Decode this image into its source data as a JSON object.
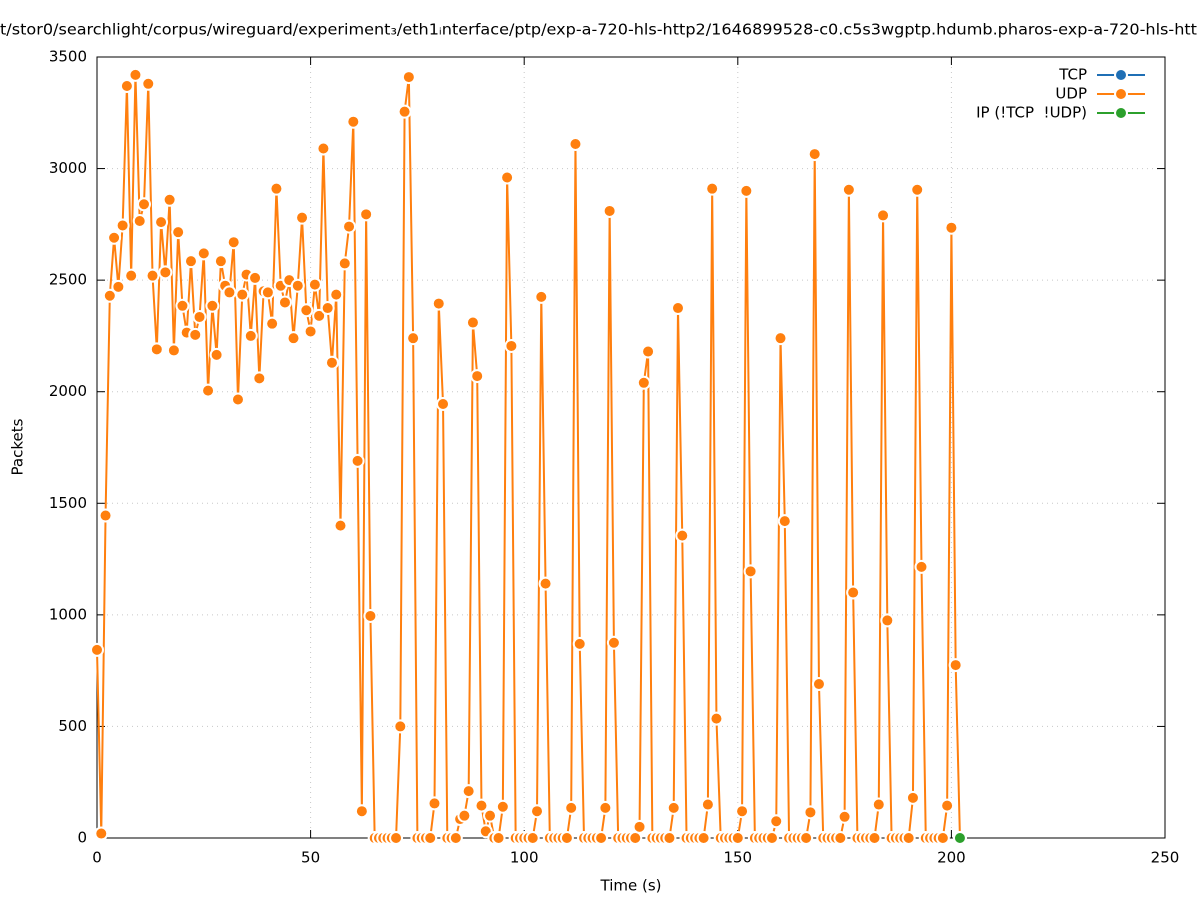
{
  "chart_data": {
    "type": "line",
    "title": "t/stor0/searchlight/corpus/wireguard/experiment₃/eth1ᵢnterface/ptp/exp-a-720-hls-http2/1646899528-c0.c5s3wgptp.hdumb.pharos-exp-a-720-hls-htt",
    "x_label": "Time (s)",
    "y_label": "Packets",
    "xlim": [
      0,
      250
    ],
    "xticks": [
      0,
      50,
      100,
      150,
      200,
      250
    ],
    "ylim": [
      0,
      3500
    ],
    "yticks": [
      0,
      500,
      1000,
      1500,
      2000,
      2500,
      3000,
      3500
    ],
    "grid": true,
    "legend": "top-right",
    "series": [
      {
        "name": "TCP",
        "color": "#1f6fb5",
        "x": [],
        "values": []
      },
      {
        "name": "UDP",
        "color": "#ff7f0e",
        "x": [
          0,
          1,
          2,
          3,
          4,
          5,
          6,
          7,
          8,
          9,
          10,
          11,
          12,
          13,
          14,
          15,
          16,
          17,
          18,
          19,
          20,
          21,
          22,
          23,
          24,
          25,
          26,
          27,
          28,
          29,
          30,
          31,
          32,
          33,
          34,
          35,
          36,
          37,
          38,
          39,
          40,
          41,
          42,
          43,
          44,
          45,
          46,
          47,
          48,
          49,
          50,
          51,
          52,
          53,
          54,
          55,
          56,
          57,
          58,
          59,
          60,
          61,
          62,
          63,
          64,
          65,
          66,
          67,
          68,
          69,
          70,
          71,
          72,
          73,
          74,
          75,
          76,
          77,
          78,
          79,
          80,
          81,
          82,
          83,
          84,
          85,
          86,
          87,
          88,
          89,
          90,
          91,
          92,
          93,
          94,
          95,
          96,
          97,
          98,
          99,
          100,
          101,
          102,
          103,
          104,
          105,
          106,
          107,
          108,
          109,
          110,
          111,
          112,
          113,
          114,
          115,
          116,
          117,
          118,
          119,
          120,
          121,
          122,
          123,
          124,
          125,
          126,
          127,
          128,
          129,
          130,
          131,
          132,
          133,
          134,
          135,
          136,
          137,
          138,
          139,
          140,
          141,
          142,
          143,
          144,
          145,
          146,
          147,
          148,
          149,
          150,
          151,
          152,
          153,
          154,
          155,
          156,
          157,
          158,
          159,
          160,
          161,
          162,
          163,
          164,
          165,
          166,
          167,
          168,
          169,
          170,
          171,
          172,
          173,
          174,
          175,
          176,
          177,
          178,
          179,
          180,
          181,
          182,
          183,
          184,
          185,
          186,
          187,
          188,
          189,
          190,
          191,
          192,
          193,
          194,
          195,
          196,
          197,
          198,
          199,
          200,
          201,
          202
        ],
        "values": [
          843,
          20,
          1445,
          2430,
          2690,
          2470,
          2745,
          3370,
          2520,
          3420,
          2765,
          2840,
          3380,
          2520,
          2190,
          2760,
          2535,
          2860,
          2185,
          2715,
          2385,
          2265,
          2585,
          2255,
          2335,
          2620,
          2005,
          2385,
          2165,
          2585,
          2475,
          2445,
          2670,
          1965,
          2435,
          2525,
          2250,
          2510,
          2060,
          2450,
          2445,
          2305,
          2910,
          2475,
          2400,
          2500,
          2240,
          2475,
          2780,
          2365,
          2270,
          2480,
          2340,
          3090,
          2375,
          2130,
          2435,
          1400,
          2575,
          2740,
          3210,
          1690,
          120,
          2795,
          995,
          0,
          0,
          0,
          0,
          0,
          0,
          500,
          3255,
          3410,
          2240,
          0,
          0,
          0,
          0,
          155,
          2395,
          1945,
          0,
          0,
          0,
          85,
          100,
          210,
          2310,
          2070,
          145,
          30,
          100,
          0,
          0,
          140,
          2960,
          2205,
          0,
          0,
          0,
          0,
          0,
          120,
          2425,
          1140,
          0,
          0,
          0,
          0,
          0,
          135,
          3110,
          870,
          0,
          0,
          0,
          0,
          0,
          135,
          2810,
          875,
          0,
          0,
          0,
          0,
          0,
          50,
          2040,
          2180,
          0,
          0,
          0,
          0,
          0,
          135,
          2375,
          1355,
          0,
          0,
          0,
          0,
          0,
          150,
          2910,
          535,
          0,
          0,
          0,
          0,
          0,
          120,
          2900,
          1195,
          0,
          0,
          0,
          0,
          0,
          75,
          2240,
          1420,
          0,
          0,
          0,
          0,
          0,
          115,
          3065,
          690,
          0,
          0,
          0,
          0,
          0,
          95,
          2905,
          1100,
          0,
          0,
          0,
          0,
          0,
          150,
          2790,
          975,
          0,
          0,
          0,
          0,
          0,
          180,
          2905,
          1215,
          0,
          0,
          0,
          0,
          0,
          145,
          2735,
          775,
          0
        ]
      },
      {
        "name": "IP (!TCP  !UDP)",
        "color": "#2ca02c",
        "x": [
          202
        ],
        "values": [
          0
        ]
      }
    ]
  }
}
